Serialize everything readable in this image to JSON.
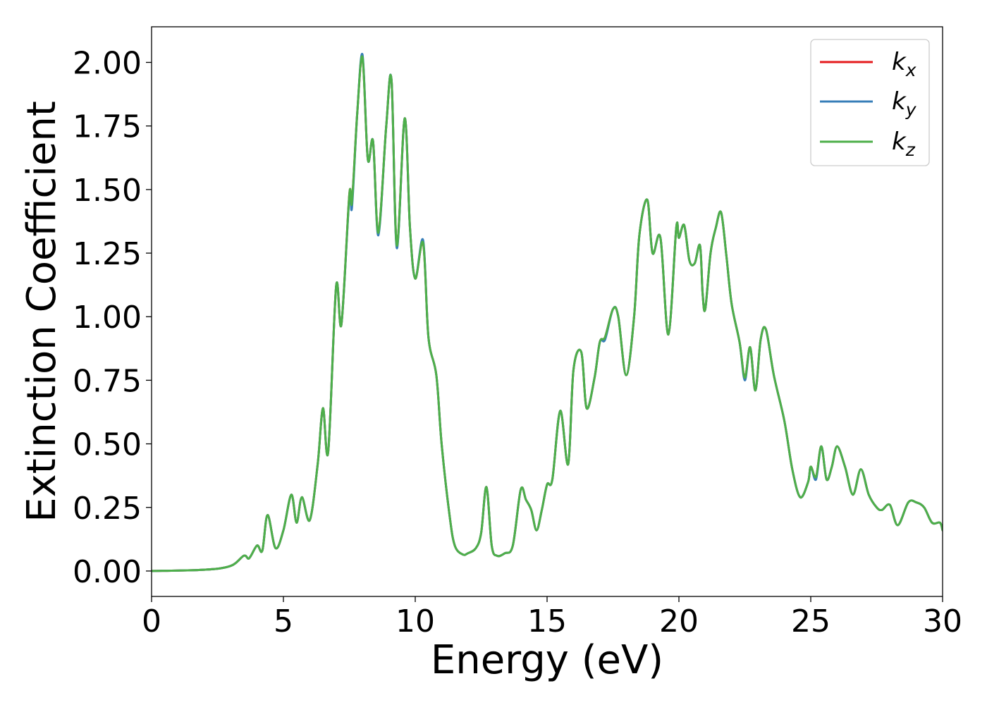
{
  "chart_data": {
    "type": "line",
    "xlabel": "Energy (eV)",
    "ylabel": "Extinction Coefficient",
    "xlim": [
      0,
      30
    ],
    "ylim": [
      -0.1,
      2.14
    ],
    "xticks": [
      "0",
      "5",
      "10",
      "15",
      "20",
      "25",
      "30"
    ],
    "yticks": [
      "0.00",
      "0.25",
      "0.50",
      "0.75",
      "1.00",
      "1.25",
      "1.50",
      "1.75",
      "2.00"
    ],
    "grid": false,
    "legend_position": "top-right",
    "series": [
      {
        "name": "k_x",
        "label_main": "k",
        "label_sub": "x",
        "color": "#e41a1c",
        "x": [
          0,
          2,
          3,
          3.5,
          3.7,
          4.0,
          4.2,
          4.4,
          4.7,
          5.0,
          5.3,
          5.5,
          5.7,
          6.0,
          6.3,
          6.5,
          6.7,
          7.0,
          7.2,
          7.5,
          7.6,
          7.8,
          8.0,
          8.2,
          8.4,
          8.6,
          8.9,
          9.1,
          9.3,
          9.6,
          9.8,
          10.0,
          10.3,
          10.5,
          10.8,
          11.0,
          11.3,
          11.5,
          11.8,
          12.0,
          12.3,
          12.5,
          12.7,
          12.9,
          13.1,
          13.4,
          13.7,
          14.0,
          14.2,
          14.4,
          14.6,
          14.8,
          15.0,
          15.2,
          15.5,
          15.8,
          16.0,
          16.3,
          16.5,
          16.8,
          17.0,
          17.2,
          17.5,
          17.7,
          18.0,
          18.3,
          18.5,
          18.8,
          19.0,
          19.3,
          19.6,
          19.9,
          20.0,
          20.2,
          20.4,
          20.6,
          20.8,
          20.9,
          21.0,
          21.2,
          21.4,
          21.6,
          21.8,
          22.0,
          22.3,
          22.5,
          22.7,
          22.9,
          23.1,
          23.3,
          23.6,
          24.0,
          24.3,
          24.6,
          24.9,
          25.0,
          25.2,
          25.4,
          25.6,
          25.8,
          26.0,
          26.3,
          26.6,
          26.9,
          27.2,
          27.5,
          27.7,
          28.0,
          28.3,
          28.7,
          29.0,
          29.3,
          29.6,
          29.9,
          30.0
        ],
        "values": [
          0,
          0.005,
          0.02,
          0.06,
          0.05,
          0.1,
          0.08,
          0.22,
          0.09,
          0.16,
          0.3,
          0.19,
          0.29,
          0.2,
          0.42,
          0.64,
          0.47,
          1.12,
          0.97,
          1.48,
          1.45,
          1.8,
          2.02,
          1.62,
          1.69,
          1.33,
          1.75,
          1.93,
          1.28,
          1.78,
          1.35,
          1.15,
          1.29,
          0.92,
          0.77,
          0.5,
          0.22,
          0.1,
          0.065,
          0.07,
          0.09,
          0.15,
          0.33,
          0.1,
          0.06,
          0.07,
          0.1,
          0.32,
          0.28,
          0.24,
          0.16,
          0.24,
          0.34,
          0.36,
          0.63,
          0.42,
          0.79,
          0.86,
          0.64,
          0.76,
          0.9,
          0.92,
          1.03,
          1.0,
          0.77,
          1.0,
          1.32,
          1.46,
          1.25,
          1.31,
          0.93,
          1.35,
          1.31,
          1.36,
          1.22,
          1.21,
          1.28,
          1.09,
          1.03,
          1.25,
          1.35,
          1.41,
          1.24,
          1.05,
          0.9,
          0.76,
          0.88,
          0.71,
          0.91,
          0.95,
          0.77,
          0.59,
          0.4,
          0.29,
          0.35,
          0.41,
          0.37,
          0.49,
          0.36,
          0.41,
          0.49,
          0.41,
          0.3,
          0.4,
          0.3,
          0.25,
          0.24,
          0.26,
          0.18,
          0.27,
          0.27,
          0.25,
          0.19,
          0.19,
          0.16
        ]
      },
      {
        "name": "k_y",
        "label_main": "k",
        "label_sub": "y",
        "color": "#377eb8",
        "x": [
          0,
          2,
          3,
          3.5,
          3.7,
          4.0,
          4.2,
          4.4,
          4.7,
          5.0,
          5.3,
          5.5,
          5.7,
          6.0,
          6.3,
          6.5,
          6.7,
          7.0,
          7.2,
          7.5,
          7.6,
          7.8,
          8.0,
          8.2,
          8.4,
          8.6,
          8.9,
          9.1,
          9.3,
          9.6,
          9.8,
          10.0,
          10.3,
          10.5,
          10.8,
          11.0,
          11.3,
          11.5,
          11.8,
          12.0,
          12.3,
          12.5,
          12.7,
          12.9,
          13.1,
          13.4,
          13.7,
          14.0,
          14.2,
          14.4,
          14.6,
          14.8,
          15.0,
          15.2,
          15.5,
          15.8,
          16.0,
          16.3,
          16.5,
          16.8,
          17.0,
          17.2,
          17.5,
          17.7,
          18.0,
          18.3,
          18.5,
          18.8,
          19.0,
          19.3,
          19.6,
          19.9,
          20.0,
          20.2,
          20.4,
          20.6,
          20.8,
          20.9,
          21.0,
          21.2,
          21.4,
          21.6,
          21.8,
          22.0,
          22.3,
          22.5,
          22.7,
          22.9,
          23.1,
          23.3,
          23.6,
          24.0,
          24.3,
          24.6,
          24.9,
          25.0,
          25.2,
          25.4,
          25.6,
          25.8,
          26.0,
          26.3,
          26.6,
          26.9,
          27.2,
          27.5,
          27.7,
          28.0,
          28.3,
          28.7,
          29.0,
          29.3,
          29.6,
          29.9,
          30.0
        ],
        "values": [
          0,
          0.005,
          0.02,
          0.06,
          0.05,
          0.1,
          0.08,
          0.22,
          0.09,
          0.16,
          0.3,
          0.19,
          0.29,
          0.2,
          0.42,
          0.64,
          0.47,
          1.12,
          0.97,
          1.47,
          1.43,
          1.8,
          2.03,
          1.62,
          1.69,
          1.32,
          1.75,
          1.93,
          1.27,
          1.78,
          1.35,
          1.15,
          1.3,
          0.92,
          0.77,
          0.5,
          0.22,
          0.1,
          0.065,
          0.07,
          0.09,
          0.15,
          0.33,
          0.1,
          0.06,
          0.07,
          0.1,
          0.32,
          0.28,
          0.24,
          0.16,
          0.24,
          0.34,
          0.36,
          0.63,
          0.42,
          0.79,
          0.86,
          0.64,
          0.76,
          0.9,
          0.91,
          1.03,
          1.0,
          0.77,
          1.0,
          1.32,
          1.46,
          1.25,
          1.31,
          0.93,
          1.35,
          1.31,
          1.36,
          1.22,
          1.21,
          1.28,
          1.09,
          1.03,
          1.25,
          1.35,
          1.41,
          1.24,
          1.05,
          0.9,
          0.75,
          0.88,
          0.71,
          0.91,
          0.95,
          0.77,
          0.59,
          0.4,
          0.29,
          0.35,
          0.41,
          0.36,
          0.49,
          0.36,
          0.41,
          0.49,
          0.41,
          0.3,
          0.4,
          0.3,
          0.25,
          0.24,
          0.26,
          0.18,
          0.27,
          0.27,
          0.25,
          0.19,
          0.19,
          0.16
        ]
      },
      {
        "name": "k_z",
        "label_main": "k",
        "label_sub": "z",
        "color": "#4daf4a",
        "x": [
          0,
          2,
          3,
          3.5,
          3.7,
          4.0,
          4.2,
          4.4,
          4.7,
          5.0,
          5.3,
          5.5,
          5.7,
          6.0,
          6.3,
          6.5,
          6.7,
          7.0,
          7.2,
          7.5,
          7.6,
          7.8,
          8.0,
          8.2,
          8.4,
          8.6,
          8.9,
          9.1,
          9.3,
          9.6,
          9.8,
          10.0,
          10.3,
          10.5,
          10.8,
          11.0,
          11.3,
          11.5,
          11.8,
          12.0,
          12.3,
          12.5,
          12.7,
          12.9,
          13.1,
          13.4,
          13.7,
          14.0,
          14.2,
          14.4,
          14.6,
          14.8,
          15.0,
          15.2,
          15.5,
          15.8,
          16.0,
          16.3,
          16.5,
          16.8,
          17.0,
          17.2,
          17.5,
          17.7,
          18.0,
          18.3,
          18.5,
          18.8,
          19.0,
          19.3,
          19.6,
          19.9,
          20.0,
          20.2,
          20.4,
          20.6,
          20.8,
          20.9,
          21.0,
          21.2,
          21.4,
          21.6,
          21.8,
          22.0,
          22.3,
          22.5,
          22.7,
          22.9,
          23.1,
          23.3,
          23.6,
          24.0,
          24.3,
          24.6,
          24.9,
          25.0,
          25.2,
          25.4,
          25.6,
          25.8,
          26.0,
          26.3,
          26.6,
          26.9,
          27.2,
          27.5,
          27.7,
          28.0,
          28.3,
          28.7,
          29.0,
          29.3,
          29.6,
          29.9,
          30.0
        ],
        "values": [
          0,
          0.005,
          0.02,
          0.06,
          0.05,
          0.1,
          0.08,
          0.22,
          0.09,
          0.16,
          0.3,
          0.19,
          0.29,
          0.2,
          0.42,
          0.64,
          0.47,
          1.12,
          0.97,
          1.48,
          1.45,
          1.8,
          2.02,
          1.62,
          1.69,
          1.33,
          1.75,
          1.93,
          1.28,
          1.78,
          1.35,
          1.15,
          1.29,
          0.92,
          0.77,
          0.5,
          0.22,
          0.1,
          0.065,
          0.07,
          0.09,
          0.15,
          0.33,
          0.1,
          0.06,
          0.07,
          0.1,
          0.32,
          0.28,
          0.24,
          0.16,
          0.24,
          0.34,
          0.36,
          0.63,
          0.42,
          0.79,
          0.86,
          0.64,
          0.76,
          0.9,
          0.92,
          1.03,
          1.0,
          0.77,
          1.0,
          1.32,
          1.46,
          1.25,
          1.31,
          0.93,
          1.35,
          1.31,
          1.36,
          1.22,
          1.21,
          1.28,
          1.09,
          1.03,
          1.25,
          1.35,
          1.41,
          1.24,
          1.05,
          0.9,
          0.76,
          0.88,
          0.71,
          0.91,
          0.95,
          0.77,
          0.59,
          0.4,
          0.29,
          0.35,
          0.41,
          0.37,
          0.49,
          0.36,
          0.41,
          0.49,
          0.41,
          0.3,
          0.4,
          0.3,
          0.25,
          0.24,
          0.26,
          0.18,
          0.27,
          0.27,
          0.25,
          0.19,
          0.19,
          0.16
        ]
      }
    ]
  }
}
